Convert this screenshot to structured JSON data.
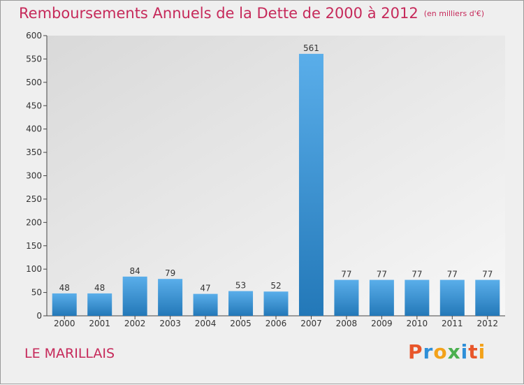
{
  "title": "Remboursements Annuels de la Dette de 2000 à 2012",
  "unit_note": "(en milliers d'€)",
  "commune": "LE MARILLAIS",
  "logo": {
    "letters": [
      "P",
      "r",
      "o",
      "x",
      "i",
      "t",
      "i"
    ],
    "colors": [
      "#e8562a",
      "#2e8fd8",
      "#f3a21a",
      "#4bb04f",
      "#2e8fd8",
      "#e8562a",
      "#f3a21a"
    ]
  },
  "colors": {
    "title": "#c6295a",
    "bar_top": "#5aaeea",
    "bar_bottom": "#2378b8"
  },
  "chart_data": {
    "type": "bar",
    "categories": [
      "2000",
      "2001",
      "2002",
      "2003",
      "2004",
      "2005",
      "2006",
      "2007",
      "2008",
      "2009",
      "2010",
      "2011",
      "2012"
    ],
    "values": [
      48,
      48,
      84,
      79,
      47,
      53,
      52,
      561,
      77,
      77,
      77,
      77,
      77
    ],
    "title": "Remboursements Annuels de la Dette de 2000 à 2012",
    "xlabel": "",
    "ylabel": "",
    "ylim": [
      0,
      600
    ],
    "yticks": [
      0,
      50,
      100,
      150,
      200,
      250,
      300,
      350,
      400,
      450,
      500,
      550,
      600
    ],
    "grid": false
  }
}
